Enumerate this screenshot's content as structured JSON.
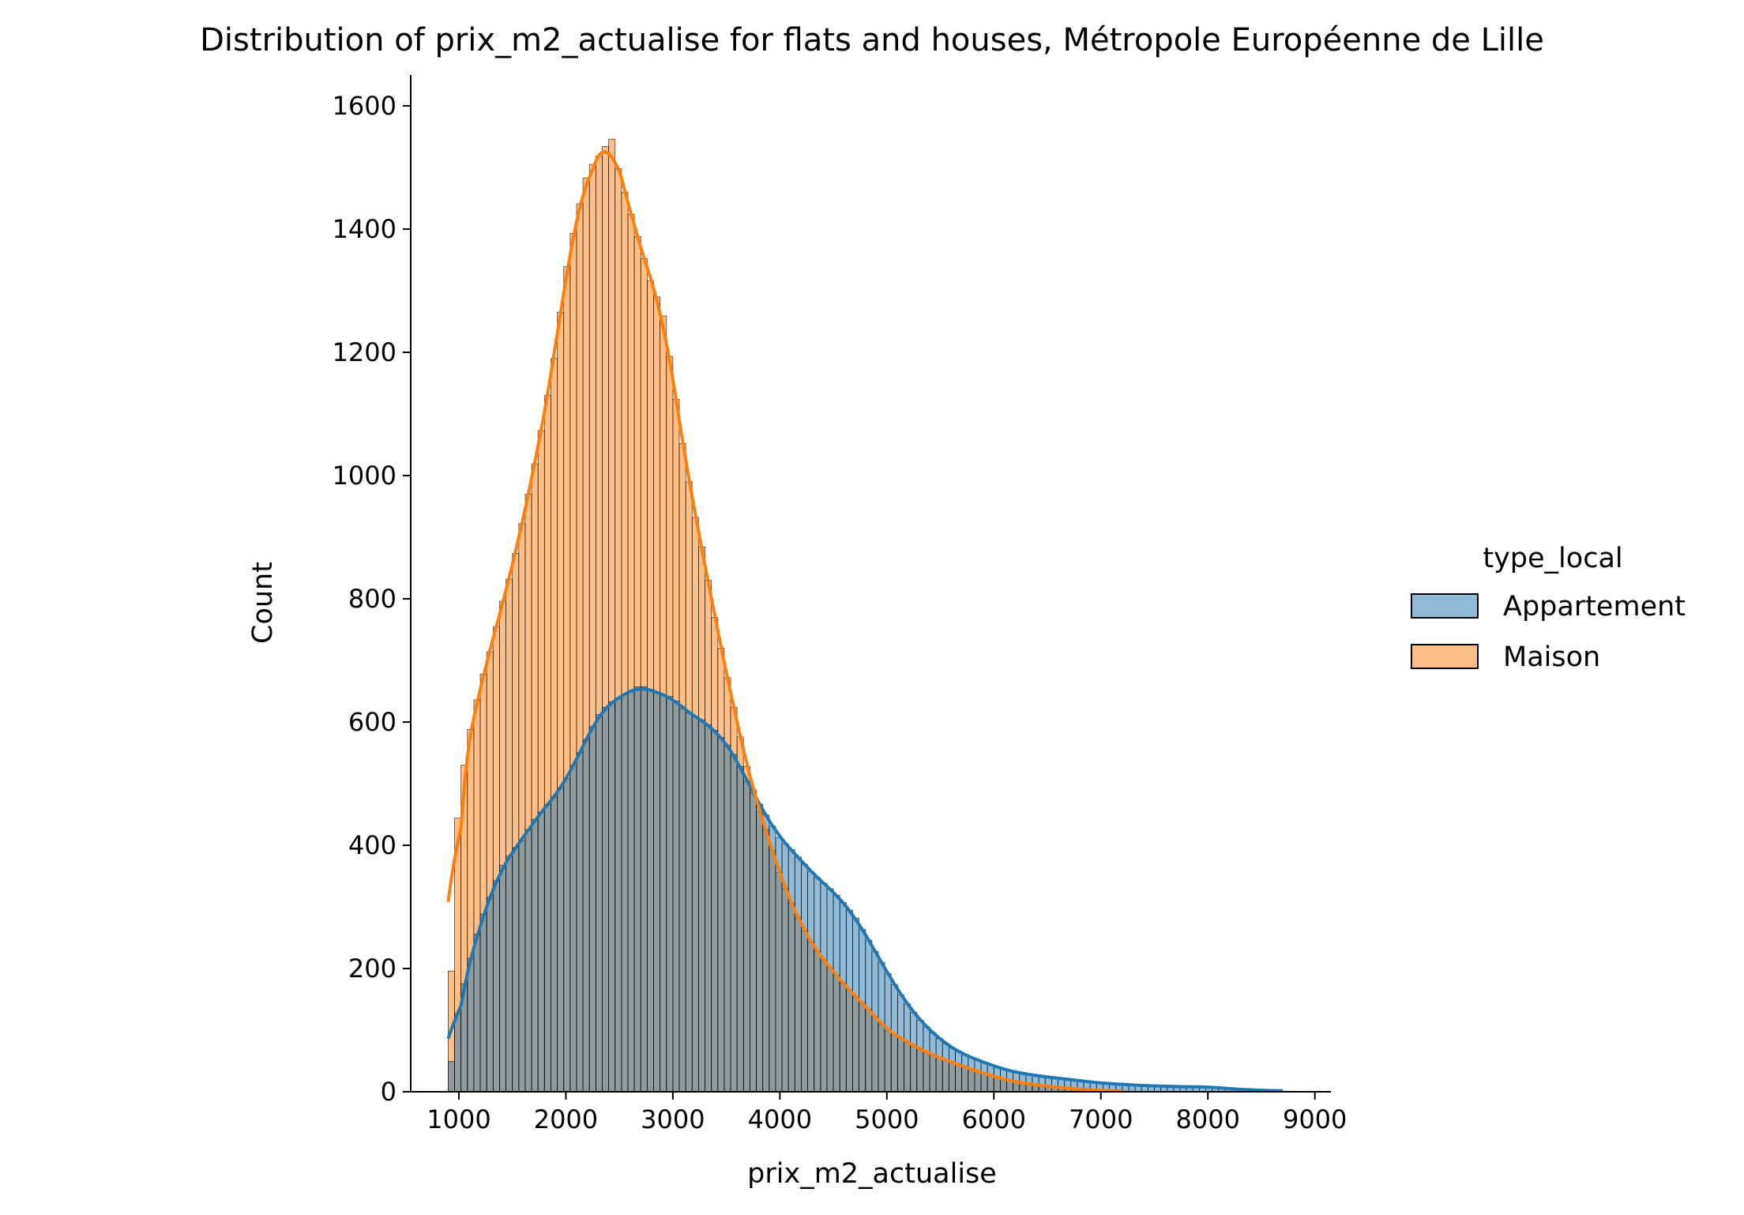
{
  "chart_data": {
    "type": "histogram",
    "title": "Distribution of prix_m2_actualise for flats and houses, Métropole Européenne de Lille",
    "xlabel": "prix_m2_actualise",
    "ylabel": "Count",
    "xlim": [
      550,
      9150
    ],
    "ylim": [
      0,
      1650
    ],
    "x_ticks": [
      "1000",
      "2000",
      "3000",
      "4000",
      "5000",
      "6000",
      "7000",
      "8000",
      "9000"
    ],
    "y_ticks": [
      "0",
      "200",
      "400",
      "600",
      "800",
      "1000",
      "1200",
      "1400",
      "1600"
    ],
    "grid": false,
    "legend": {
      "title": "type_local",
      "placement": "right",
      "items": [
        "Appartement",
        "Maison"
      ]
    },
    "bin_width": 60,
    "series": [
      {
        "name": "Appartement",
        "color": "#1f77b4",
        "values": [
          {
            "x": 900,
            "y": 10
          },
          {
            "x": 1000,
            "y": 140
          },
          {
            "x": 1100,
            "y": 210
          },
          {
            "x": 1200,
            "y": 275
          },
          {
            "x": 1300,
            "y": 320
          },
          {
            "x": 1400,
            "y": 365
          },
          {
            "x": 1500,
            "y": 390
          },
          {
            "x": 1600,
            "y": 410
          },
          {
            "x": 1700,
            "y": 440
          },
          {
            "x": 1800,
            "y": 460
          },
          {
            "x": 1900,
            "y": 480
          },
          {
            "x": 2000,
            "y": 505
          },
          {
            "x": 2100,
            "y": 540
          },
          {
            "x": 2200,
            "y": 575
          },
          {
            "x": 2300,
            "y": 610
          },
          {
            "x": 2400,
            "y": 630
          },
          {
            "x": 2500,
            "y": 640
          },
          {
            "x": 2600,
            "y": 650
          },
          {
            "x": 2700,
            "y": 660
          },
          {
            "x": 2800,
            "y": 650
          },
          {
            "x": 2900,
            "y": 645
          },
          {
            "x": 3000,
            "y": 640
          },
          {
            "x": 3100,
            "y": 620
          },
          {
            "x": 3200,
            "y": 610
          },
          {
            "x": 3300,
            "y": 600
          },
          {
            "x": 3400,
            "y": 585
          },
          {
            "x": 3500,
            "y": 565
          },
          {
            "x": 3600,
            "y": 540
          },
          {
            "x": 3700,
            "y": 500
          },
          {
            "x": 3800,
            "y": 470
          },
          {
            "x": 3900,
            "y": 440
          },
          {
            "x": 4000,
            "y": 410
          },
          {
            "x": 4100,
            "y": 395
          },
          {
            "x": 4200,
            "y": 375
          },
          {
            "x": 4300,
            "y": 355
          },
          {
            "x": 4400,
            "y": 340
          },
          {
            "x": 4500,
            "y": 325
          },
          {
            "x": 4600,
            "y": 305
          },
          {
            "x": 4700,
            "y": 285
          },
          {
            "x": 4800,
            "y": 255
          },
          {
            "x": 4900,
            "y": 225
          },
          {
            "x": 5000,
            "y": 195
          },
          {
            "x": 5100,
            "y": 165
          },
          {
            "x": 5200,
            "y": 140
          },
          {
            "x": 5300,
            "y": 118
          },
          {
            "x": 5400,
            "y": 100
          },
          {
            "x": 5500,
            "y": 85
          },
          {
            "x": 5600,
            "y": 72
          },
          {
            "x": 5700,
            "y": 62
          },
          {
            "x": 5800,
            "y": 55
          },
          {
            "x": 5900,
            "y": 48
          },
          {
            "x": 6000,
            "y": 42
          },
          {
            "x": 6100,
            "y": 36
          },
          {
            "x": 6200,
            "y": 32
          },
          {
            "x": 6400,
            "y": 26
          },
          {
            "x": 6600,
            "y": 22
          },
          {
            "x": 6800,
            "y": 18
          },
          {
            "x": 7000,
            "y": 14
          },
          {
            "x": 7200,
            "y": 12
          },
          {
            "x": 7400,
            "y": 10
          },
          {
            "x": 7600,
            "y": 9
          },
          {
            "x": 7800,
            "y": 8
          },
          {
            "x": 8000,
            "y": 8
          },
          {
            "x": 8200,
            "y": 5
          },
          {
            "x": 8400,
            "y": 3
          },
          {
            "x": 8600,
            "y": 2
          },
          {
            "x": 8700,
            "y": 1
          }
        ]
      },
      {
        "name": "Maison",
        "color": "#ff7f0e",
        "values": [
          {
            "x": 900,
            "y": 40
          },
          {
            "x": 950,
            "y": 300
          },
          {
            "x": 1000,
            "y": 480
          },
          {
            "x": 1100,
            "y": 580
          },
          {
            "x": 1200,
            "y": 660
          },
          {
            "x": 1300,
            "y": 720
          },
          {
            "x": 1400,
            "y": 790
          },
          {
            "x": 1500,
            "y": 850
          },
          {
            "x": 1600,
            "y": 930
          },
          {
            "x": 1700,
            "y": 1010
          },
          {
            "x": 1800,
            "y": 1100
          },
          {
            "x": 1900,
            "y": 1200
          },
          {
            "x": 2000,
            "y": 1330
          },
          {
            "x": 2100,
            "y": 1420
          },
          {
            "x": 2200,
            "y": 1490
          },
          {
            "x": 2300,
            "y": 1520
          },
          {
            "x": 2350,
            "y": 1510
          },
          {
            "x": 2400,
            "y": 1570
          },
          {
            "x": 2500,
            "y": 1490
          },
          {
            "x": 2600,
            "y": 1430
          },
          {
            "x": 2700,
            "y": 1370
          },
          {
            "x": 2800,
            "y": 1310
          },
          {
            "x": 2900,
            "y": 1270
          },
          {
            "x": 3000,
            "y": 1160
          },
          {
            "x": 3100,
            "y": 1040
          },
          {
            "x": 3200,
            "y": 940
          },
          {
            "x": 3300,
            "y": 860
          },
          {
            "x": 3400,
            "y": 760
          },
          {
            "x": 3500,
            "y": 680
          },
          {
            "x": 3600,
            "y": 600
          },
          {
            "x": 3700,
            "y": 520
          },
          {
            "x": 3800,
            "y": 460
          },
          {
            "x": 3900,
            "y": 410
          },
          {
            "x": 4000,
            "y": 350
          },
          {
            "x": 4100,
            "y": 310
          },
          {
            "x": 4200,
            "y": 270
          },
          {
            "x": 4300,
            "y": 240
          },
          {
            "x": 4400,
            "y": 215
          },
          {
            "x": 4500,
            "y": 195
          },
          {
            "x": 4600,
            "y": 175
          },
          {
            "x": 4700,
            "y": 155
          },
          {
            "x": 4800,
            "y": 140
          },
          {
            "x": 4900,
            "y": 120
          },
          {
            "x": 5000,
            "y": 100
          },
          {
            "x": 5100,
            "y": 90
          },
          {
            "x": 5200,
            "y": 80
          },
          {
            "x": 5300,
            "y": 70
          },
          {
            "x": 5400,
            "y": 62
          },
          {
            "x": 5500,
            "y": 55
          },
          {
            "x": 5600,
            "y": 48
          },
          {
            "x": 5700,
            "y": 42
          },
          {
            "x": 5800,
            "y": 36
          },
          {
            "x": 5900,
            "y": 30
          },
          {
            "x": 6000,
            "y": 25
          },
          {
            "x": 6100,
            "y": 20
          },
          {
            "x": 6200,
            "y": 16
          },
          {
            "x": 6400,
            "y": 11
          },
          {
            "x": 6600,
            "y": 7
          },
          {
            "x": 6800,
            "y": 4
          },
          {
            "x": 7000,
            "y": 2
          },
          {
            "x": 7200,
            "y": 1
          }
        ]
      }
    ]
  }
}
